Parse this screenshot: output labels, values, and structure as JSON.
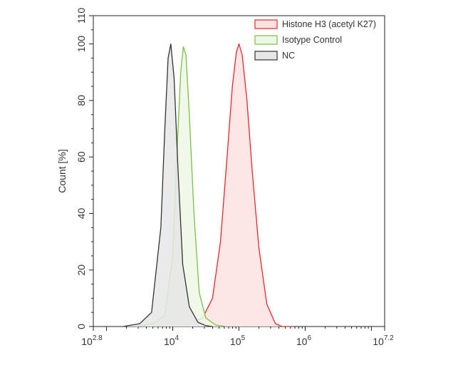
{
  "chart_data": {
    "type": "area",
    "ylabel": "Count [%]",
    "xlabel": "",
    "x_scale": "log",
    "xlim_log10": [
      2.8,
      7.2
    ],
    "ylim": [
      0,
      110
    ],
    "x_ticks": [
      {
        "base": "10",
        "exp": "2.8",
        "log10": 2.8
      },
      {
        "base": "10",
        "exp": "4",
        "log10": 4
      },
      {
        "base": "10",
        "exp": "5",
        "log10": 5
      },
      {
        "base": "10",
        "exp": "6",
        "log10": 6
      },
      {
        "base": "10",
        "exp": "7.2",
        "log10": 7.2
      }
    ],
    "y_ticks": [
      0,
      20,
      40,
      60,
      80,
      100,
      110
    ],
    "grid": false,
    "legend_position": "top-right",
    "series": [
      {
        "name": "Histone H3 (acetyl K27)",
        "stroke": "#e8262a",
        "fill": "#fde2e2",
        "x_log10": [
          4.0,
          4.25,
          4.45,
          4.6,
          4.72,
          4.82,
          4.9,
          4.96,
          5.0,
          5.05,
          5.12,
          5.2,
          5.3,
          5.42,
          5.55,
          5.65,
          5.8
        ],
        "y": [
          0,
          1,
          3,
          10,
          30,
          60,
          85,
          97,
          100,
          96,
          80,
          55,
          28,
          8,
          1,
          0,
          0
        ]
      },
      {
        "name": "Isotype Control",
        "stroke": "#7ac143",
        "fill": "#edf7e5",
        "x_log10": [
          3.45,
          3.7,
          3.88,
          4.0,
          4.06,
          4.12,
          4.16,
          4.2,
          4.25,
          4.32,
          4.4,
          4.5,
          4.65,
          4.8
        ],
        "y": [
          0,
          1,
          4,
          25,
          60,
          90,
          99,
          96,
          75,
          40,
          12,
          3,
          0.5,
          0
        ]
      },
      {
        "name": "NC",
        "stroke": "#333333",
        "fill": "#e6e6e6",
        "x_log10": [
          3.25,
          3.5,
          3.68,
          3.82,
          3.88,
          3.93,
          3.97,
          4.02,
          4.08,
          4.15,
          4.25,
          4.38,
          4.5,
          4.6
        ],
        "y": [
          0,
          1,
          5,
          35,
          70,
          95,
          100,
          88,
          55,
          22,
          7,
          1.5,
          0.3,
          0
        ]
      }
    ]
  }
}
